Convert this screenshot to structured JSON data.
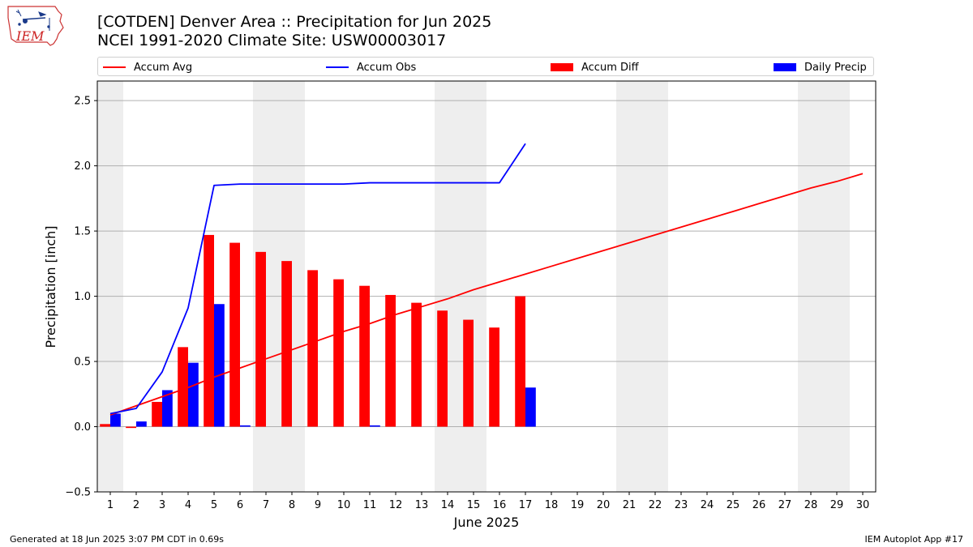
{
  "header": {
    "title_line1": "[COTDEN] Denver Area :: Precipitation for Jun 2025",
    "title_line2": "NCEI 1991-2020 Climate Site: USW00003017"
  },
  "logo": {
    "text": "IEM"
  },
  "footer": {
    "left": "Generated at 18 Jun 2025 3:07 PM CDT in 0.69s",
    "right": "IEM Autoplot App #17"
  },
  "colors": {
    "accum_avg": "#ff0000",
    "accum_obs": "#0000ff",
    "accum_diff": "#ff0000",
    "daily_precip": "#0000ff",
    "weekend_band": "#eeeeee",
    "grid": "#b0b0b0"
  },
  "chart_data": {
    "type": "bar",
    "xlabel": "June 2025",
    "ylabel": "Precipitation [inch]",
    "ylim": [
      -0.5,
      2.65
    ],
    "yticks": [
      -0.5,
      0.0,
      0.5,
      1.0,
      1.5,
      2.0,
      2.5
    ],
    "ytick_labels": [
      "−0.5",
      "0.0",
      "0.5",
      "1.0",
      "1.5",
      "2.0",
      "2.5"
    ],
    "xlim": [
      0.5,
      30.5
    ],
    "days": [
      1,
      2,
      3,
      4,
      5,
      6,
      7,
      8,
      9,
      10,
      11,
      12,
      13,
      14,
      15,
      16,
      17,
      18,
      19,
      20,
      21,
      22,
      23,
      24,
      25,
      26,
      27,
      28,
      29,
      30
    ],
    "weekend_bands": [
      [
        0.5,
        1.5
      ],
      [
        6.5,
        8.5
      ],
      [
        13.5,
        15.5
      ],
      [
        20.5,
        22.5
      ],
      [
        27.5,
        29.5
      ]
    ],
    "grid": "horizontal",
    "legend_position": "top",
    "legend": [
      "Accum Avg",
      "Accum Obs",
      "Accum Diff",
      "Daily Precip"
    ],
    "series": [
      {
        "name": "Accum Avg",
        "kind": "line",
        "days": [
          1,
          2,
          3,
          4,
          5,
          6,
          7,
          8,
          9,
          10,
          11,
          12,
          13,
          14,
          15,
          16,
          17,
          18,
          19,
          20,
          21,
          22,
          23,
          24,
          25,
          26,
          27,
          28,
          29,
          30
        ],
        "values": [
          0.09,
          0.16,
          0.23,
          0.3,
          0.38,
          0.45,
          0.52,
          0.59,
          0.66,
          0.73,
          0.79,
          0.86,
          0.92,
          0.98,
          1.05,
          1.11,
          1.17,
          1.23,
          1.29,
          1.35,
          1.41,
          1.47,
          1.53,
          1.59,
          1.65,
          1.71,
          1.77,
          1.83,
          1.88,
          1.94
        ]
      },
      {
        "name": "Accum Obs",
        "kind": "line",
        "days": [
          1,
          2,
          3,
          4,
          5,
          6,
          7,
          8,
          9,
          10,
          11,
          12,
          13,
          14,
          15,
          16,
          17
        ],
        "values": [
          0.1,
          0.14,
          0.42,
          0.91,
          1.85,
          1.86,
          1.86,
          1.86,
          1.86,
          1.86,
          1.87,
          1.87,
          1.87,
          1.87,
          1.87,
          1.87,
          2.17
        ]
      },
      {
        "name": "Accum Diff",
        "kind": "bar",
        "days": [
          1,
          2,
          3,
          4,
          5,
          6,
          7,
          8,
          9,
          10,
          11,
          12,
          13,
          14,
          15,
          16,
          17
        ],
        "values": [
          0.02,
          -0.01,
          0.19,
          0.61,
          1.47,
          1.41,
          1.34,
          1.27,
          1.2,
          1.13,
          1.08,
          1.01,
          0.95,
          0.89,
          0.82,
          0.76,
          1.0
        ]
      },
      {
        "name": "Daily Precip",
        "kind": "bar",
        "days": [
          1,
          2,
          3,
          4,
          5,
          6,
          7,
          8,
          9,
          10,
          11,
          12,
          13,
          14,
          15,
          16,
          17
        ],
        "values": [
          0.1,
          0.04,
          0.28,
          0.49,
          0.94,
          0.01,
          0,
          0,
          0,
          0,
          0.01,
          0,
          0,
          0,
          0,
          0,
          0.3
        ]
      }
    ]
  }
}
